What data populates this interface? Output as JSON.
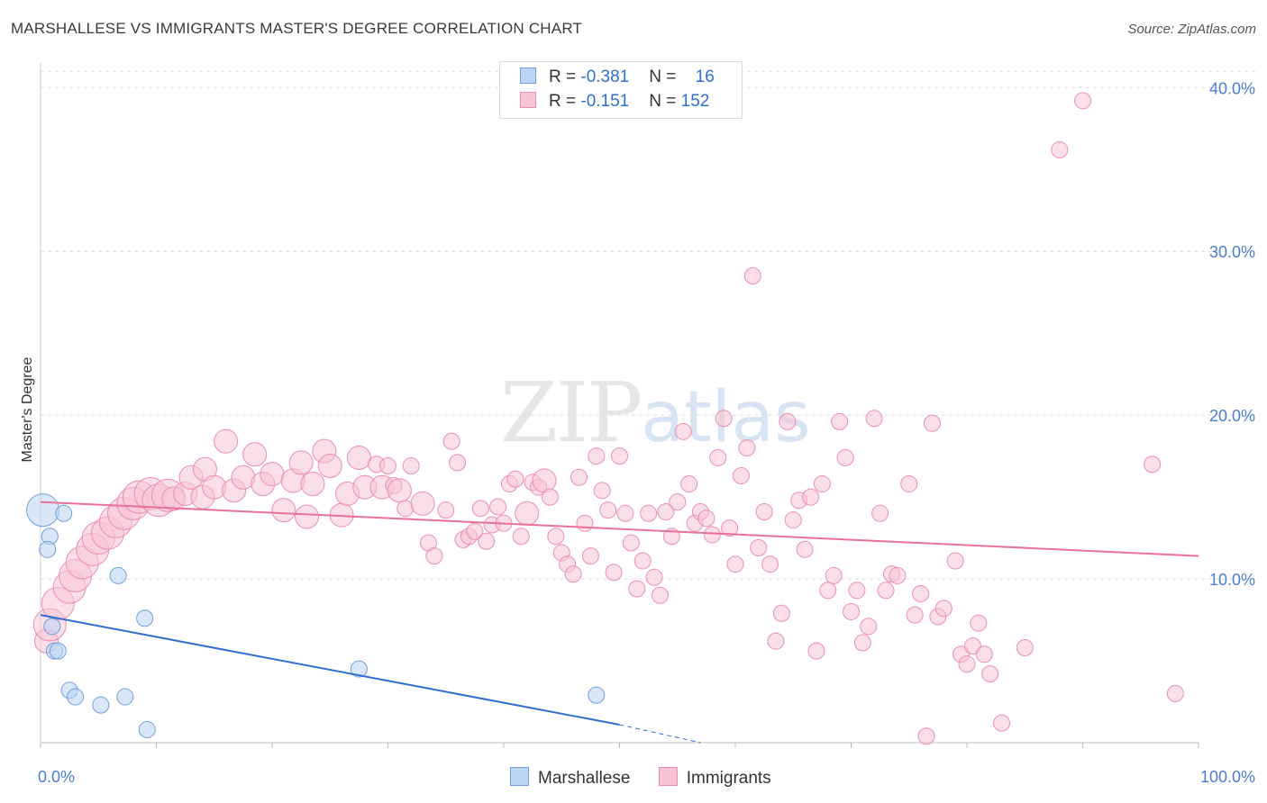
{
  "title": "MARSHALLESE VS IMMIGRANTS MASTER'S DEGREE CORRELATION CHART",
  "source": "Source: ZipAtlas.com",
  "watermark": {
    "zip": "ZIP",
    "atlas": "atlas"
  },
  "legend": {
    "rows": [
      {
        "r_label": "R = ",
        "r_value": "-0.381",
        "n_label": "N = ",
        "n_value": "16"
      },
      {
        "r_label": "R = ",
        "r_value": "-0.151",
        "n_label": "N = ",
        "n_value": "152"
      }
    ]
  },
  "bottom_legend": [
    "Marshallese",
    "Immigrants"
  ],
  "colors": {
    "marshallese_fill": "#bcd4f4",
    "marshallese_stroke": "#6f9fe0",
    "marshallese_line": "#2f6fd0",
    "immigrants_fill": "#f8c4d4",
    "immigrants_stroke": "#ec8fae",
    "immigrants_line": "#e8709a",
    "grid": "#dddddd",
    "tick_text": "#4a7fd0"
  },
  "chart_data": {
    "type": "scatter",
    "title": "MARSHALLESE VS IMMIGRANTS MASTER'S DEGREE CORRELATION CHART",
    "xlabel": "",
    "ylabel": "Master's Degree",
    "xlim": [
      0,
      100
    ],
    "ylim": [
      0,
      41.5
    ],
    "y_ticks": [
      10,
      20,
      30,
      40
    ],
    "y_tick_labels": [
      "10.0%",
      "20.0%",
      "30.0%",
      "40.0%"
    ],
    "x_tick_labels": [
      "0.0%",
      "100.0%"
    ],
    "series": [
      {
        "name": "Marshallese",
        "r": -0.381,
        "n": 16,
        "points": [
          {
            "x": 0.2,
            "y": 14.2,
            "s": 3
          },
          {
            "x": 2.0,
            "y": 14.0,
            "s": 1
          },
          {
            "x": 0.8,
            "y": 12.6,
            "s": 1
          },
          {
            "x": 0.6,
            "y": 11.8,
            "s": 1
          },
          {
            "x": 6.7,
            "y": 10.2,
            "s": 1
          },
          {
            "x": 9.0,
            "y": 7.6,
            "s": 1
          },
          {
            "x": 1.0,
            "y": 7.1,
            "s": 1
          },
          {
            "x": 1.2,
            "y": 5.6,
            "s": 1
          },
          {
            "x": 1.5,
            "y": 5.6,
            "s": 1
          },
          {
            "x": 2.5,
            "y": 3.2,
            "s": 1
          },
          {
            "x": 3.0,
            "y": 2.8,
            "s": 1
          },
          {
            "x": 5.2,
            "y": 2.3,
            "s": 1
          },
          {
            "x": 7.3,
            "y": 2.8,
            "s": 1
          },
          {
            "x": 9.2,
            "y": 0.8,
            "s": 1
          },
          {
            "x": 27.5,
            "y": 4.5,
            "s": 1
          },
          {
            "x": 48.0,
            "y": 2.9,
            "s": 1
          }
        ],
        "trend": {
          "x": [
            0,
            50
          ],
          "y": [
            7.8,
            1.1
          ],
          "dashed_to": [
            57,
            0
          ]
        }
      },
      {
        "name": "Immigrants",
        "r": -0.151,
        "n": 152,
        "points": [
          {
            "x": 0.5,
            "y": 6.2,
            "s": 2
          },
          {
            "x": 0.8,
            "y": 7.2,
            "s": 3
          },
          {
            "x": 1.5,
            "y": 8.5,
            "s": 3
          },
          {
            "x": 2.5,
            "y": 9.5,
            "s": 3
          },
          {
            "x": 3.0,
            "y": 10.2,
            "s": 3
          },
          {
            "x": 3.6,
            "y": 11.0,
            "s": 3
          },
          {
            "x": 4.5,
            "y": 11.8,
            "s": 3
          },
          {
            "x": 5.0,
            "y": 12.5,
            "s": 3
          },
          {
            "x": 5.8,
            "y": 12.8,
            "s": 3
          },
          {
            "x": 6.5,
            "y": 13.5,
            "s": 3
          },
          {
            "x": 7.2,
            "y": 14.0,
            "s": 3
          },
          {
            "x": 8.0,
            "y": 14.6,
            "s": 3
          },
          {
            "x": 8.5,
            "y": 15.0,
            "s": 3
          },
          {
            "x": 9.5,
            "y": 15.2,
            "s": 3
          },
          {
            "x": 10.2,
            "y": 14.8,
            "s": 3
          },
          {
            "x": 11.0,
            "y": 15.1,
            "s": 3
          },
          {
            "x": 11.5,
            "y": 14.9,
            "s": 2
          },
          {
            "x": 12.5,
            "y": 15.2,
            "s": 2
          },
          {
            "x": 13.0,
            "y": 16.2,
            "s": 2
          },
          {
            "x": 14.0,
            "y": 15.0,
            "s": 2
          },
          {
            "x": 14.2,
            "y": 16.7,
            "s": 2
          },
          {
            "x": 15.0,
            "y": 15.6,
            "s": 2
          },
          {
            "x": 16.0,
            "y": 18.4,
            "s": 2
          },
          {
            "x": 16.7,
            "y": 15.4,
            "s": 2
          },
          {
            "x": 17.5,
            "y": 16.2,
            "s": 2
          },
          {
            "x": 18.5,
            "y": 17.6,
            "s": 2
          },
          {
            "x": 19.2,
            "y": 15.8,
            "s": 2
          },
          {
            "x": 20.0,
            "y": 16.4,
            "s": 2
          },
          {
            "x": 21.0,
            "y": 14.2,
            "s": 2
          },
          {
            "x": 21.8,
            "y": 16.0,
            "s": 2
          },
          {
            "x": 22.5,
            "y": 17.1,
            "s": 2
          },
          {
            "x": 23.0,
            "y": 13.8,
            "s": 2
          },
          {
            "x": 23.5,
            "y": 15.8,
            "s": 2
          },
          {
            "x": 24.5,
            "y": 17.8,
            "s": 2
          },
          {
            "x": 25.0,
            "y": 16.9,
            "s": 2
          },
          {
            "x": 26.0,
            "y": 13.9,
            "s": 2
          },
          {
            "x": 26.5,
            "y": 15.2,
            "s": 2
          },
          {
            "x": 27.5,
            "y": 17.4,
            "s": 2
          },
          {
            "x": 28.0,
            "y": 15.6,
            "s": 2
          },
          {
            "x": 29.0,
            "y": 17.0,
            "s": 1
          },
          {
            "x": 29.5,
            "y": 15.6,
            "s": 2
          },
          {
            "x": 30.0,
            "y": 16.9,
            "s": 1
          },
          {
            "x": 30.5,
            "y": 15.7,
            "s": 1
          },
          {
            "x": 31.0,
            "y": 15.4,
            "s": 2
          },
          {
            "x": 31.5,
            "y": 14.3,
            "s": 1
          },
          {
            "x": 32.0,
            "y": 16.9,
            "s": 1
          },
          {
            "x": 33.0,
            "y": 14.6,
            "s": 2
          },
          {
            "x": 33.5,
            "y": 12.2,
            "s": 1
          },
          {
            "x": 34.0,
            "y": 11.4,
            "s": 1
          },
          {
            "x": 35.0,
            "y": 14.2,
            "s": 1
          },
          {
            "x": 35.5,
            "y": 18.4,
            "s": 1
          },
          {
            "x": 36.0,
            "y": 17.1,
            "s": 1
          },
          {
            "x": 36.5,
            "y": 12.4,
            "s": 1
          },
          {
            "x": 37.0,
            "y": 12.6,
            "s": 1
          },
          {
            "x": 37.5,
            "y": 12.9,
            "s": 1
          },
          {
            "x": 38.0,
            "y": 14.3,
            "s": 1
          },
          {
            "x": 38.5,
            "y": 12.3,
            "s": 1
          },
          {
            "x": 39.0,
            "y": 13.3,
            "s": 1
          },
          {
            "x": 39.5,
            "y": 14.4,
            "s": 1
          },
          {
            "x": 40.0,
            "y": 13.4,
            "s": 1
          },
          {
            "x": 40.5,
            "y": 15.8,
            "s": 1
          },
          {
            "x": 41.0,
            "y": 16.1,
            "s": 1
          },
          {
            "x": 41.5,
            "y": 12.6,
            "s": 1
          },
          {
            "x": 42.0,
            "y": 14.0,
            "s": 2
          },
          {
            "x": 42.5,
            "y": 15.9,
            "s": 1
          },
          {
            "x": 43.0,
            "y": 15.6,
            "s": 1
          },
          {
            "x": 43.5,
            "y": 16.0,
            "s": 2
          },
          {
            "x": 44.0,
            "y": 15.0,
            "s": 1
          },
          {
            "x": 44.5,
            "y": 12.6,
            "s": 1
          },
          {
            "x": 45.0,
            "y": 11.6,
            "s": 1
          },
          {
            "x": 45.5,
            "y": 10.9,
            "s": 1
          },
          {
            "x": 46.0,
            "y": 10.3,
            "s": 1
          },
          {
            "x": 46.5,
            "y": 16.2,
            "s": 1
          },
          {
            "x": 47.0,
            "y": 13.4,
            "s": 1
          },
          {
            "x": 47.5,
            "y": 11.4,
            "s": 1
          },
          {
            "x": 48.0,
            "y": 17.5,
            "s": 1
          },
          {
            "x": 48.5,
            "y": 15.4,
            "s": 1
          },
          {
            "x": 49.0,
            "y": 14.2,
            "s": 1
          },
          {
            "x": 49.5,
            "y": 10.4,
            "s": 1
          },
          {
            "x": 50.0,
            "y": 17.5,
            "s": 1
          },
          {
            "x": 50.5,
            "y": 14.0,
            "s": 1
          },
          {
            "x": 51.0,
            "y": 12.2,
            "s": 1
          },
          {
            "x": 51.5,
            "y": 9.4,
            "s": 1
          },
          {
            "x": 52.0,
            "y": 11.1,
            "s": 1
          },
          {
            "x": 52.5,
            "y": 14.0,
            "s": 1
          },
          {
            "x": 53.0,
            "y": 10.1,
            "s": 1
          },
          {
            "x": 53.5,
            "y": 9.0,
            "s": 1
          },
          {
            "x": 54.0,
            "y": 14.1,
            "s": 1
          },
          {
            "x": 54.5,
            "y": 12.6,
            "s": 1
          },
          {
            "x": 55.0,
            "y": 14.7,
            "s": 1
          },
          {
            "x": 55.5,
            "y": 19.0,
            "s": 1
          },
          {
            "x": 56.0,
            "y": 15.8,
            "s": 1
          },
          {
            "x": 56.5,
            "y": 13.4,
            "s": 1
          },
          {
            "x": 57.0,
            "y": 14.1,
            "s": 1
          },
          {
            "x": 57.5,
            "y": 13.7,
            "s": 1
          },
          {
            "x": 58.0,
            "y": 12.7,
            "s": 1
          },
          {
            "x": 58.5,
            "y": 17.4,
            "s": 1
          },
          {
            "x": 59.0,
            "y": 19.8,
            "s": 1
          },
          {
            "x": 59.5,
            "y": 13.1,
            "s": 1
          },
          {
            "x": 60.0,
            "y": 10.9,
            "s": 1
          },
          {
            "x": 60.5,
            "y": 16.3,
            "s": 1
          },
          {
            "x": 61.0,
            "y": 18.0,
            "s": 1
          },
          {
            "x": 61.5,
            "y": 28.5,
            "s": 1
          },
          {
            "x": 62.0,
            "y": 11.9,
            "s": 1
          },
          {
            "x": 62.5,
            "y": 14.1,
            "s": 1
          },
          {
            "x": 63.0,
            "y": 10.9,
            "s": 1
          },
          {
            "x": 63.5,
            "y": 6.2,
            "s": 1
          },
          {
            "x": 64.0,
            "y": 7.9,
            "s": 1
          },
          {
            "x": 64.5,
            "y": 19.6,
            "s": 1
          },
          {
            "x": 65.0,
            "y": 13.6,
            "s": 1
          },
          {
            "x": 65.5,
            "y": 14.8,
            "s": 1
          },
          {
            "x": 66.0,
            "y": 11.8,
            "s": 1
          },
          {
            "x": 66.5,
            "y": 15.0,
            "s": 1
          },
          {
            "x": 67.0,
            "y": 5.6,
            "s": 1
          },
          {
            "x": 67.5,
            "y": 15.8,
            "s": 1
          },
          {
            "x": 68.0,
            "y": 9.3,
            "s": 1
          },
          {
            "x": 68.5,
            "y": 10.2,
            "s": 1
          },
          {
            "x": 69.0,
            "y": 19.6,
            "s": 1
          },
          {
            "x": 69.5,
            "y": 17.4,
            "s": 1
          },
          {
            "x": 70.0,
            "y": 8.0,
            "s": 1
          },
          {
            "x": 70.5,
            "y": 9.3,
            "s": 1
          },
          {
            "x": 71.0,
            "y": 6.1,
            "s": 1
          },
          {
            "x": 71.5,
            "y": 7.1,
            "s": 1
          },
          {
            "x": 72.0,
            "y": 19.8,
            "s": 1
          },
          {
            "x": 72.5,
            "y": 14.0,
            "s": 1
          },
          {
            "x": 73.0,
            "y": 9.3,
            "s": 1
          },
          {
            "x": 73.5,
            "y": 10.3,
            "s": 1
          },
          {
            "x": 74.0,
            "y": 10.2,
            "s": 1
          },
          {
            "x": 75.0,
            "y": 15.8,
            "s": 1
          },
          {
            "x": 75.5,
            "y": 7.8,
            "s": 1
          },
          {
            "x": 76.0,
            "y": 9.1,
            "s": 1
          },
          {
            "x": 76.5,
            "y": 0.4,
            "s": 1
          },
          {
            "x": 77.0,
            "y": 19.5,
            "s": 1
          },
          {
            "x": 77.5,
            "y": 7.7,
            "s": 1
          },
          {
            "x": 78.0,
            "y": 8.2,
            "s": 1
          },
          {
            "x": 79.0,
            "y": 11.1,
            "s": 1
          },
          {
            "x": 79.5,
            "y": 5.4,
            "s": 1
          },
          {
            "x": 80.0,
            "y": 4.8,
            "s": 1
          },
          {
            "x": 80.5,
            "y": 5.9,
            "s": 1
          },
          {
            "x": 81.0,
            "y": 7.3,
            "s": 1
          },
          {
            "x": 81.5,
            "y": 5.4,
            "s": 1
          },
          {
            "x": 82.0,
            "y": 4.2,
            "s": 1
          },
          {
            "x": 83.0,
            "y": 1.2,
            "s": 1
          },
          {
            "x": 85.0,
            "y": 5.8,
            "s": 1
          },
          {
            "x": 88.0,
            "y": 36.2,
            "s": 1
          },
          {
            "x": 90.0,
            "y": 39.2,
            "s": 1
          },
          {
            "x": 96.0,
            "y": 17.0,
            "s": 1
          },
          {
            "x": 98.0,
            "y": 3.0,
            "s": 1
          }
        ],
        "trend": {
          "x": [
            0,
            100
          ],
          "y": [
            14.7,
            11.4
          ]
        }
      }
    ]
  }
}
